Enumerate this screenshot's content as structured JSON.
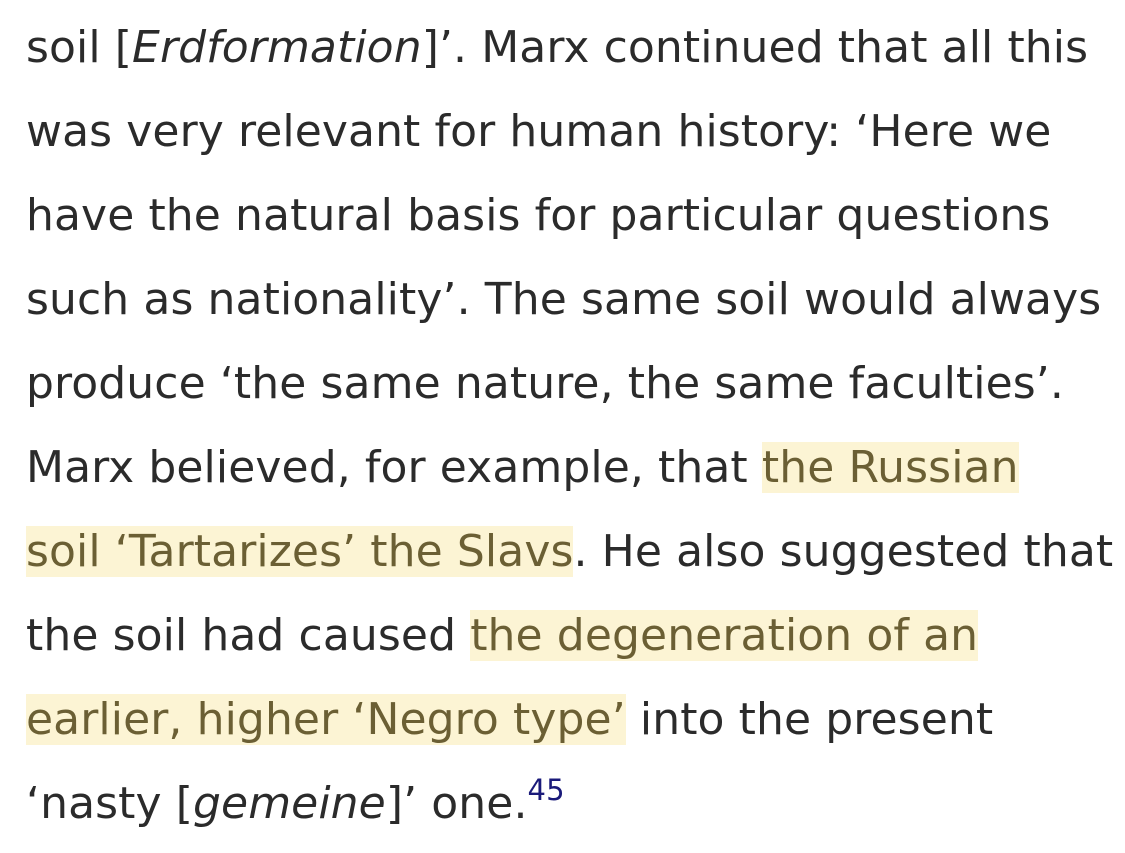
{
  "passage": {
    "line1": {
      "t1": "soil [",
      "i1": "Erdformation",
      "t2": "]’. Marx continued that all this"
    },
    "line2": {
      "t1": "was very relevant for human history: ‘Here we"
    },
    "line3": {
      "t1": "have the natural basis for particular questions"
    },
    "line4": {
      "t1": "such as nationality’. The same soil would always"
    },
    "line5": {
      "t1": "produce ‘the same nature, the same faculties’."
    },
    "line6": {
      "t1": "Marx believed, for example, that ",
      "h1": "the Russian"
    },
    "line7": {
      "h1": "soil ‘Tartarizes’ the Slavs",
      "t1": ". He also suggested that"
    },
    "line8": {
      "t1": "the soil had caused ",
      "h1": "the degeneration of an"
    },
    "line9": {
      "h1": "earlier, higher ‘Negro type’",
      "t1": " into the present"
    },
    "line10": {
      "t1": "‘nasty [",
      "i1": "gemeine",
      "t2": "]’ one.",
      "footnote": "45"
    }
  },
  "colors": {
    "text": "#2b2b2b",
    "highlight_bg": "#fcf4d4",
    "highlight_text": "#6b5f34",
    "footnote": "#1a1a7a"
  }
}
